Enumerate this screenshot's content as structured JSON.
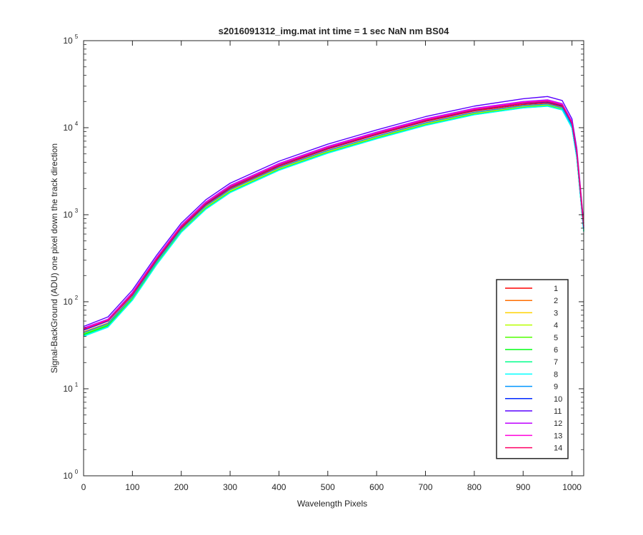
{
  "chart_data": {
    "type": "line",
    "title": "s2016091312_img.mat int time = 1 sec  NaN nm BS04",
    "xlabel": "Wavelength Pixels",
    "ylabel": "Signal-BackGround (ADU) one pixel down the track direction",
    "xlim": [
      0,
      1024
    ],
    "ylim": [
      1,
      100000
    ],
    "yscale": "log",
    "grid": false,
    "legend_location": "bottom-right",
    "x_ticks": [
      0,
      100,
      200,
      300,
      400,
      500,
      600,
      700,
      800,
      900,
      1000
    ],
    "x_tick_labels": [
      "0",
      "100",
      "200",
      "300",
      "400",
      "500",
      "600",
      "700",
      "800",
      "900",
      "1000"
    ],
    "y_ticks": [
      1,
      10,
      100,
      1000,
      10000,
      100000
    ],
    "y_tick_base_labels": [
      "10",
      "10",
      "10",
      "10",
      "10",
      "10"
    ],
    "y_tick_exponent_labels": [
      "0",
      "1",
      "2",
      "3",
      "4",
      "5"
    ],
    "x": [
      0,
      50,
      100,
      150,
      200,
      250,
      300,
      400,
      500,
      600,
      700,
      800,
      900,
      950,
      980,
      1000,
      1010,
      1024
    ],
    "series": [
      {
        "name": "1",
        "color": "#ff0000",
        "values": [
          48,
          60,
          120,
          300,
          700,
          1300,
          2000,
          3600,
          5700,
          8300,
          11800,
          15600,
          18500,
          19300,
          17500,
          11000,
          5000,
          700
        ]
      },
      {
        "name": "2",
        "color": "#ff6e00",
        "values": [
          45,
          57,
          115,
          290,
          680,
          1260,
          1950,
          3500,
          5500,
          8000,
          11400,
          15100,
          18000,
          18800,
          17000,
          10600,
          4800,
          680
        ]
      },
      {
        "name": "3",
        "color": "#ffd200",
        "values": [
          44,
          56,
          112,
          285,
          665,
          1230,
          1900,
          3420,
          5380,
          7850,
          11200,
          14800,
          17600,
          18400,
          16700,
          10400,
          4700,
          670
        ]
      },
      {
        "name": "4",
        "color": "#b9ff00",
        "values": [
          43,
          55,
          110,
          280,
          650,
          1200,
          1860,
          3350,
          5270,
          7700,
          11000,
          14500,
          17300,
          18100,
          16400,
          10200,
          4600,
          660
        ]
      },
      {
        "name": "5",
        "color": "#50ff00",
        "values": [
          42,
          54,
          108,
          275,
          640,
          1180,
          1830,
          3300,
          5200,
          7600,
          10800,
          14300,
          17100,
          17900,
          16200,
          10100,
          4550,
          650
        ]
      },
      {
        "name": "6",
        "color": "#00ff14",
        "values": [
          42,
          53,
          106,
          272,
          635,
          1170,
          1810,
          3270,
          5150,
          7530,
          10700,
          14200,
          17000,
          17800,
          16100,
          10000,
          4500,
          650
        ]
      },
      {
        "name": "7",
        "color": "#00ff8c",
        "values": [
          41,
          52,
          105,
          270,
          630,
          1160,
          1800,
          3250,
          5120,
          7480,
          10650,
          14100,
          16900,
          17700,
          16000,
          9950,
          4480,
          640
        ]
      },
      {
        "name": "8",
        "color": "#00ffff",
        "values": [
          40,
          51,
          104,
          268,
          625,
          1150,
          1790,
          3230,
          5090,
          7440,
          10600,
          14050,
          16850,
          17650,
          15950,
          9900,
          4460,
          640
        ]
      },
      {
        "name": "9",
        "color": "#0096ff",
        "values": [
          44,
          56,
          114,
          290,
          675,
          1250,
          1940,
          3480,
          5470,
          7980,
          11350,
          15000,
          17900,
          18700,
          16900,
          10500,
          4750,
          680
        ]
      },
      {
        "name": "10",
        "color": "#0028ff",
        "values": [
          47,
          60,
          122,
          310,
          720,
          1330,
          2060,
          3700,
          5820,
          8480,
          12050,
          15950,
          19000,
          19800,
          17900,
          11100,
          5050,
          710
        ]
      },
      {
        "name": "11",
        "color": "#5a00ff",
        "values": [
          52,
          67,
          136,
          345,
          800,
          1480,
          2300,
          4120,
          6470,
          9420,
          13400,
          17700,
          21500,
          22800,
          20500,
          12600,
          5700,
          800
        ]
      },
      {
        "name": "12",
        "color": "#be00ff",
        "values": [
          50,
          63,
          128,
          325,
          755,
          1400,
          2170,
          3880,
          6100,
          8900,
          12650,
          16700,
          20000,
          20900,
          18900,
          11700,
          5300,
          750
        ]
      },
      {
        "name": "13",
        "color": "#ff00dc",
        "values": [
          49,
          62,
          125,
          318,
          740,
          1370,
          2120,
          3800,
          5970,
          8700,
          12380,
          16350,
          19500,
          20400,
          18400,
          11400,
          5200,
          740
        ]
      },
      {
        "name": "14",
        "color": "#ff0064",
        "values": [
          48,
          61,
          123,
          313,
          728,
          1350,
          2090,
          3740,
          5880,
          8570,
          12180,
          16100,
          19200,
          20100,
          18200,
          11300,
          5150,
          730
        ]
      }
    ]
  }
}
